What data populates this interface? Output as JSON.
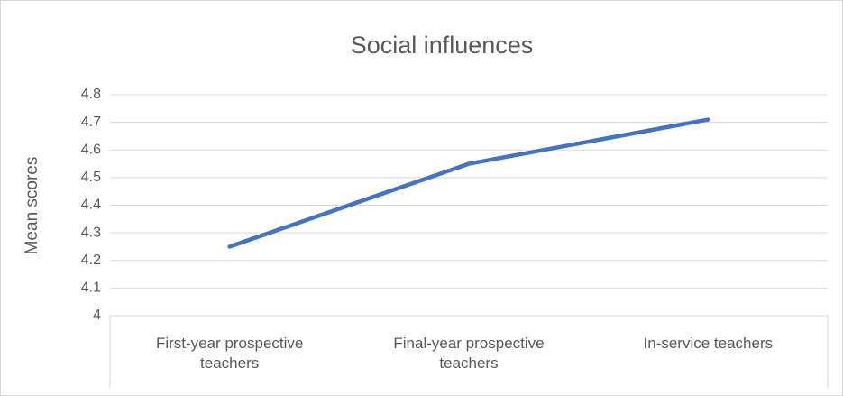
{
  "chart_data": {
    "type": "line",
    "title": "Social influences",
    "y_label": "Mean scores",
    "categories": [
      "First-year prospective teachers",
      "Final-year prospective teachers",
      "In-service teachers"
    ],
    "series": [
      {
        "name": "Mean scores",
        "color": "#4472c4",
        "values": [
          4.25,
          4.55,
          4.71
        ]
      }
    ],
    "ylim": [
      4,
      4.8
    ],
    "yticks": [
      4,
      4.1,
      4.2,
      4.3,
      4.4,
      4.5,
      4.6,
      4.7,
      4.8
    ],
    "grid": true
  }
}
